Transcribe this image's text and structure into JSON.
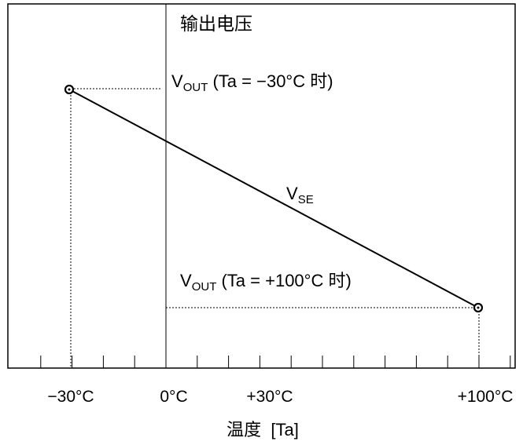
{
  "y_axis_label": "输出电压",
  "x_axis_label": "温度  [Ta]",
  "x_ticks": [
    "−30°C",
    "0°C",
    "+30°C",
    "+100°C"
  ],
  "annotations": {
    "vout_low": {
      "v": "V",
      "sub": "OUT",
      "rest": " (Ta = −30°C 时)"
    },
    "vout_high": {
      "v": "V",
      "sub": "OUT",
      "rest": " (Ta = +100°C 时)"
    },
    "vse": {
      "v": "V",
      "sub": "SE"
    }
  },
  "chart_data": {
    "type": "line",
    "series": [
      {
        "name": "VSE",
        "x": [
          -30,
          100
        ]
      }
    ]
  }
}
